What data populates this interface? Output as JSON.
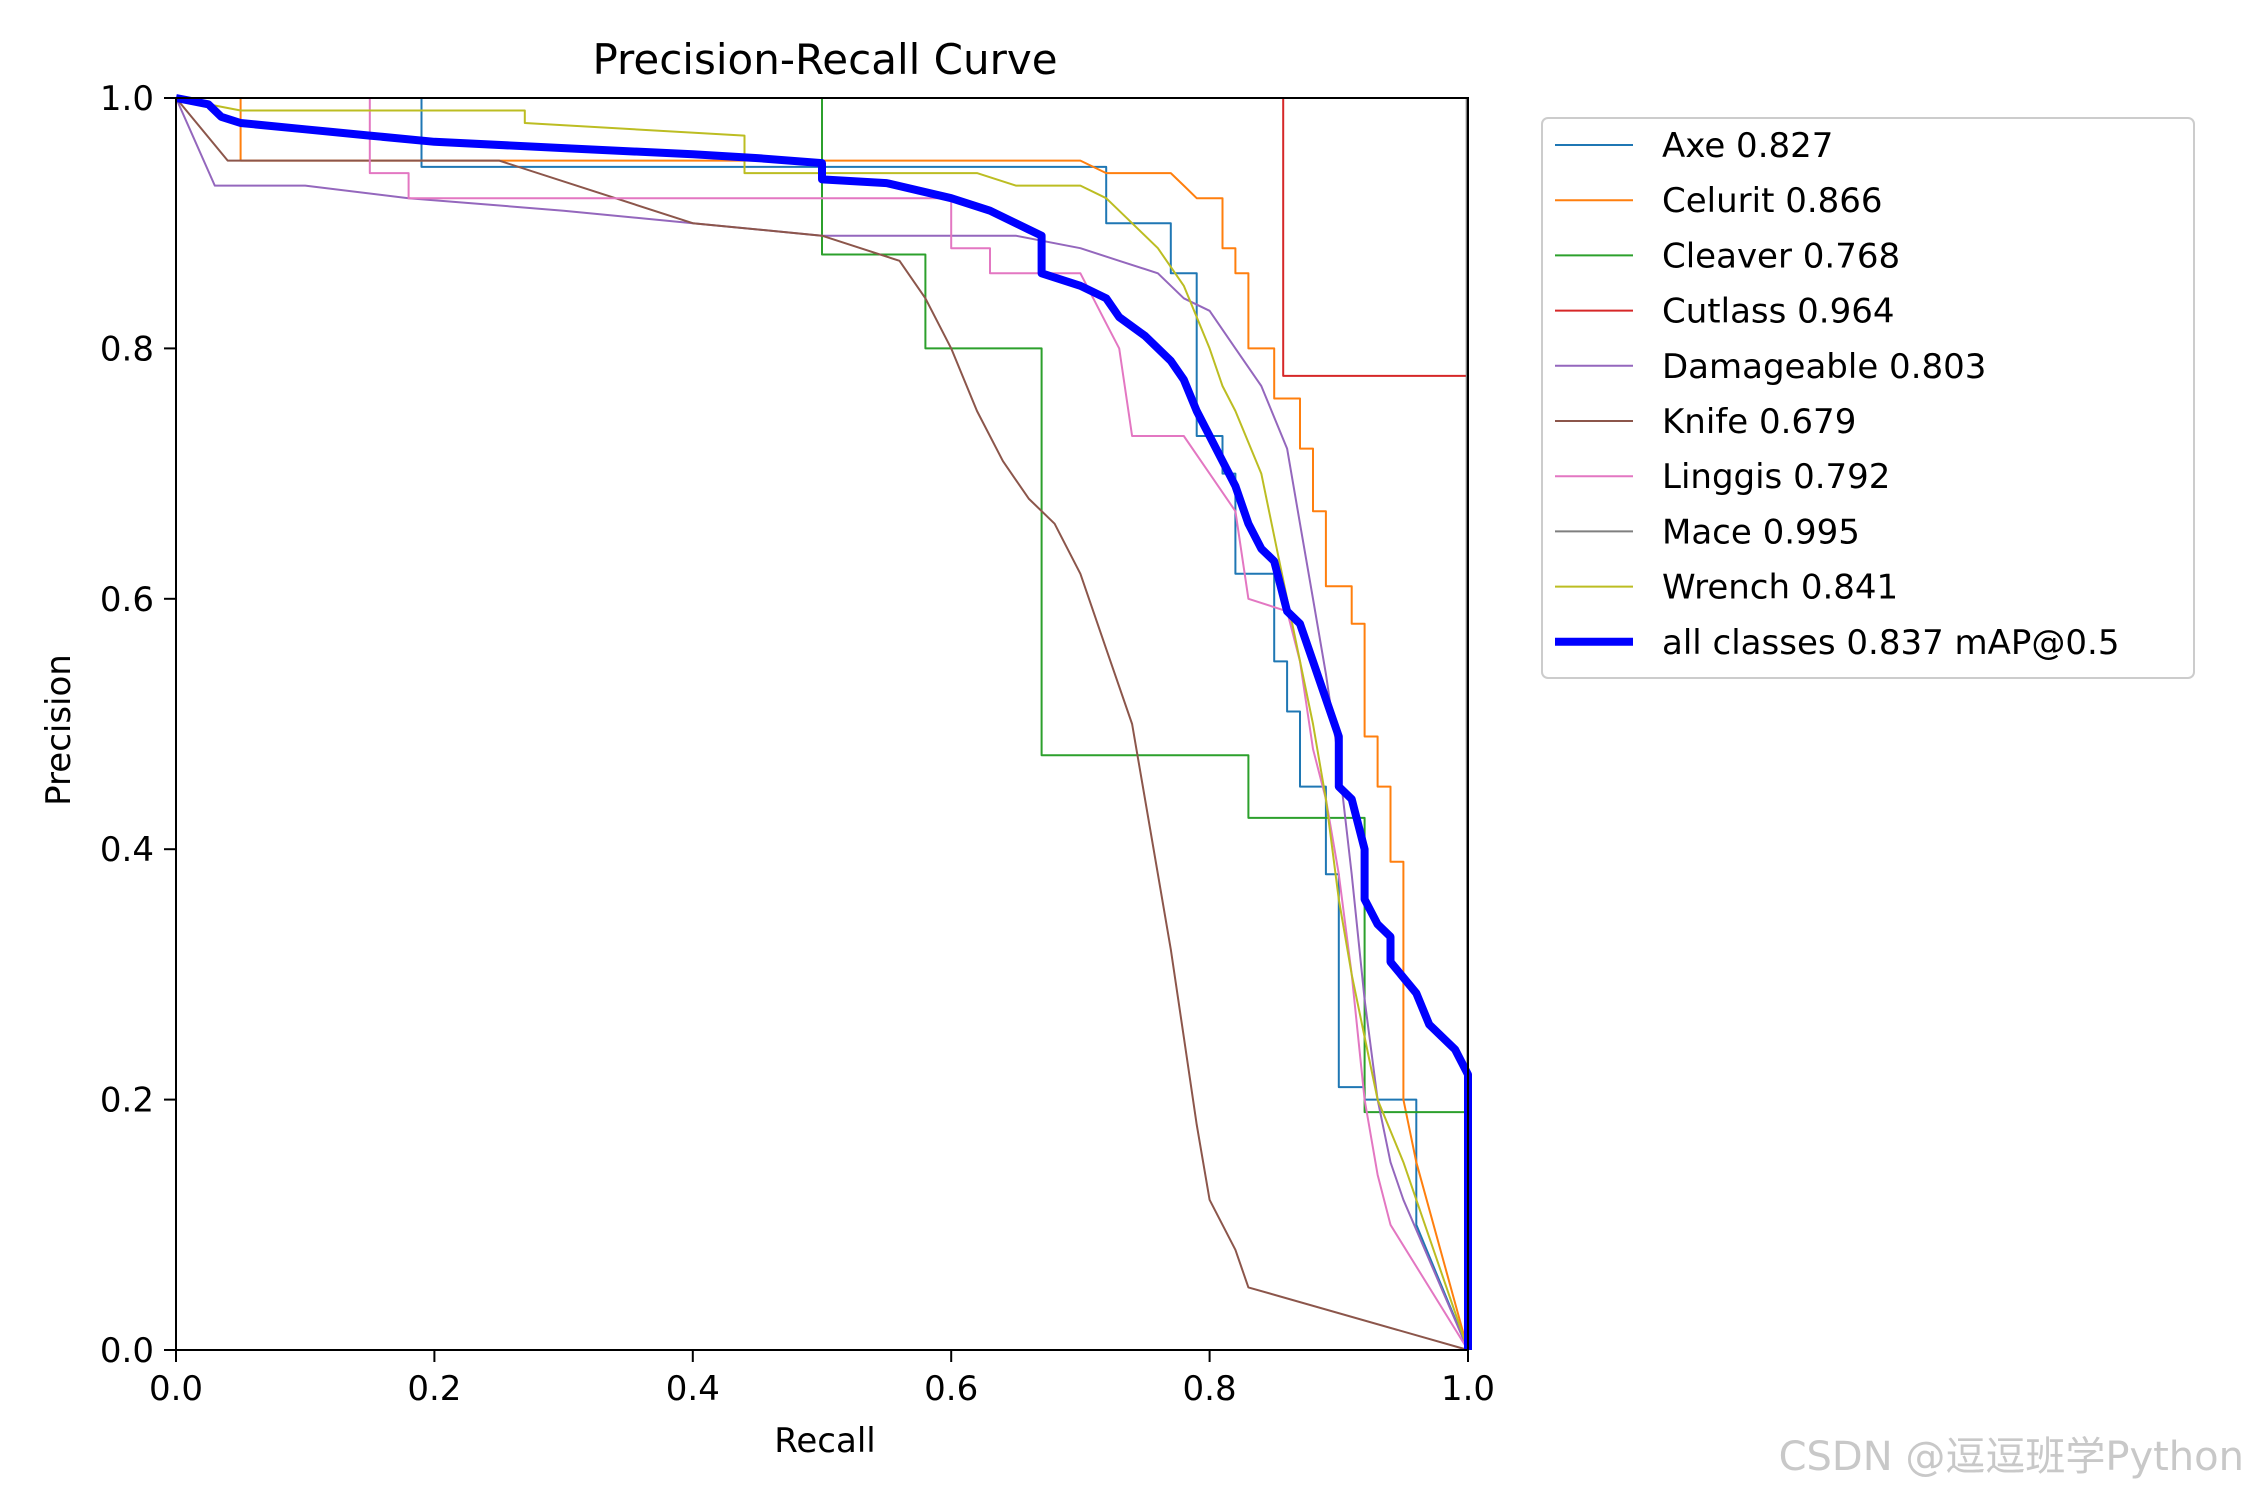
{
  "chart_data": {
    "type": "line",
    "title": "Precision-Recall Curve",
    "xlabel": "Recall",
    "ylabel": "Precision",
    "xlim": [
      0,
      1
    ],
    "ylim": [
      0,
      1
    ],
    "xticks": [
      "0.0",
      "0.2",
      "0.4",
      "0.6",
      "0.8",
      "1.0"
    ],
    "yticks": [
      "0.0",
      "0.2",
      "0.4",
      "0.6",
      "0.8",
      "1.0"
    ],
    "grid": false,
    "legend_position": "outside-right",
    "series": [
      {
        "name": "Axe 0.827",
        "color": "#1f77b4",
        "highlight": false,
        "points": [
          [
            0,
            1
          ],
          [
            0.19,
            1
          ],
          [
            0.19,
            0.945
          ],
          [
            0.5,
            0.945
          ],
          [
            0.72,
            0.945
          ],
          [
            0.72,
            0.9
          ],
          [
            0.77,
            0.9
          ],
          [
            0.77,
            0.86
          ],
          [
            0.79,
            0.86
          ],
          [
            0.79,
            0.73
          ],
          [
            0.81,
            0.73
          ],
          [
            0.81,
            0.7
          ],
          [
            0.82,
            0.7
          ],
          [
            0.82,
            0.62
          ],
          [
            0.85,
            0.62
          ],
          [
            0.85,
            0.55
          ],
          [
            0.86,
            0.55
          ],
          [
            0.86,
            0.51
          ],
          [
            0.87,
            0.51
          ],
          [
            0.87,
            0.45
          ],
          [
            0.89,
            0.45
          ],
          [
            0.89,
            0.38
          ],
          [
            0.9,
            0.38
          ],
          [
            0.9,
            0.21
          ],
          [
            0.92,
            0.21
          ],
          [
            0.92,
            0.2
          ],
          [
            0.96,
            0.2
          ],
          [
            0.96,
            0.1
          ],
          [
            1,
            0
          ]
        ]
      },
      {
        "name": "Celurit 0.866",
        "color": "#ff7f0e",
        "highlight": false,
        "points": [
          [
            0,
            1
          ],
          [
            0.05,
            1
          ],
          [
            0.05,
            0.95
          ],
          [
            0.7,
            0.95
          ],
          [
            0.72,
            0.94
          ],
          [
            0.77,
            0.94
          ],
          [
            0.78,
            0.93
          ],
          [
            0.79,
            0.92
          ],
          [
            0.81,
            0.92
          ],
          [
            0.81,
            0.88
          ],
          [
            0.82,
            0.88
          ],
          [
            0.82,
            0.86
          ],
          [
            0.83,
            0.86
          ],
          [
            0.83,
            0.8
          ],
          [
            0.85,
            0.8
          ],
          [
            0.85,
            0.76
          ],
          [
            0.87,
            0.76
          ],
          [
            0.87,
            0.72
          ],
          [
            0.88,
            0.72
          ],
          [
            0.88,
            0.67
          ],
          [
            0.89,
            0.67
          ],
          [
            0.89,
            0.61
          ],
          [
            0.91,
            0.61
          ],
          [
            0.91,
            0.58
          ],
          [
            0.92,
            0.58
          ],
          [
            0.92,
            0.49
          ],
          [
            0.93,
            0.49
          ],
          [
            0.93,
            0.45
          ],
          [
            0.94,
            0.45
          ],
          [
            0.94,
            0.39
          ],
          [
            0.95,
            0.39
          ],
          [
            0.95,
            0.2
          ],
          [
            0.96,
            0.15
          ],
          [
            1,
            0
          ]
        ]
      },
      {
        "name": "Cleaver 0.768",
        "color": "#2ca02c",
        "highlight": false,
        "points": [
          [
            0,
            1
          ],
          [
            0.5,
            1
          ],
          [
            0.5,
            0.875
          ],
          [
            0.58,
            0.875
          ],
          [
            0.58,
            0.8
          ],
          [
            0.67,
            0.8
          ],
          [
            0.67,
            0.475
          ],
          [
            0.83,
            0.475
          ],
          [
            0.83,
            0.425
          ],
          [
            0.92,
            0.425
          ],
          [
            0.92,
            0.19
          ],
          [
            1,
            0.19
          ],
          [
            1,
            0
          ]
        ]
      },
      {
        "name": "Cutlass 0.964",
        "color": "#d62728",
        "highlight": false,
        "points": [
          [
            0,
            1
          ],
          [
            0.857,
            1
          ],
          [
            0.857,
            0.778
          ],
          [
            1,
            0.778
          ],
          [
            1,
            0
          ]
        ]
      },
      {
        "name": "Damageable 0.803",
        "color": "#9467bd",
        "highlight": false,
        "points": [
          [
            0,
            1
          ],
          [
            0.03,
            0.93
          ],
          [
            0.1,
            0.93
          ],
          [
            0.18,
            0.92
          ],
          [
            0.3,
            0.91
          ],
          [
            0.4,
            0.9
          ],
          [
            0.5,
            0.89
          ],
          [
            0.6,
            0.89
          ],
          [
            0.65,
            0.89
          ],
          [
            0.7,
            0.88
          ],
          [
            0.73,
            0.87
          ],
          [
            0.76,
            0.86
          ],
          [
            0.78,
            0.84
          ],
          [
            0.8,
            0.83
          ],
          [
            0.82,
            0.8
          ],
          [
            0.84,
            0.77
          ],
          [
            0.86,
            0.72
          ],
          [
            0.87,
            0.66
          ],
          [
            0.88,
            0.6
          ],
          [
            0.89,
            0.54
          ],
          [
            0.9,
            0.47
          ],
          [
            0.91,
            0.38
          ],
          [
            0.92,
            0.28
          ],
          [
            0.93,
            0.2
          ],
          [
            0.94,
            0.15
          ],
          [
            0.95,
            0.12
          ],
          [
            1,
            0
          ]
        ]
      },
      {
        "name": "Knife 0.679",
        "color": "#8c564b",
        "highlight": false,
        "points": [
          [
            0,
            1
          ],
          [
            0.04,
            0.95
          ],
          [
            0.25,
            0.95
          ],
          [
            0.4,
            0.9
          ],
          [
            0.5,
            0.89
          ],
          [
            0.56,
            0.87
          ],
          [
            0.58,
            0.84
          ],
          [
            0.6,
            0.8
          ],
          [
            0.62,
            0.75
          ],
          [
            0.64,
            0.71
          ],
          [
            0.66,
            0.68
          ],
          [
            0.68,
            0.66
          ],
          [
            0.7,
            0.62
          ],
          [
            0.72,
            0.56
          ],
          [
            0.74,
            0.5
          ],
          [
            0.75,
            0.44
          ],
          [
            0.76,
            0.38
          ],
          [
            0.77,
            0.32
          ],
          [
            0.78,
            0.25
          ],
          [
            0.79,
            0.18
          ],
          [
            0.8,
            0.12
          ],
          [
            0.82,
            0.08
          ],
          [
            0.83,
            0.05
          ],
          [
            1,
            0
          ]
        ]
      },
      {
        "name": "Linggis 0.792",
        "color": "#e377c2",
        "highlight": false,
        "points": [
          [
            0,
            1
          ],
          [
            0.15,
            1
          ],
          [
            0.15,
            0.94
          ],
          [
            0.18,
            0.94
          ],
          [
            0.18,
            0.92
          ],
          [
            0.6,
            0.92
          ],
          [
            0.6,
            0.88
          ],
          [
            0.63,
            0.88
          ],
          [
            0.63,
            0.86
          ],
          [
            0.7,
            0.86
          ],
          [
            0.72,
            0.82
          ],
          [
            0.73,
            0.8
          ],
          [
            0.74,
            0.73
          ],
          [
            0.78,
            0.73
          ],
          [
            0.8,
            0.7
          ],
          [
            0.82,
            0.67
          ],
          [
            0.83,
            0.6
          ],
          [
            0.86,
            0.59
          ],
          [
            0.87,
            0.55
          ],
          [
            0.88,
            0.48
          ],
          [
            0.89,
            0.44
          ],
          [
            0.9,
            0.38
          ],
          [
            0.91,
            0.3
          ],
          [
            0.92,
            0.2
          ],
          [
            0.93,
            0.14
          ],
          [
            0.94,
            0.1
          ],
          [
            1,
            0
          ]
        ]
      },
      {
        "name": "Mace 0.995",
        "color": "#7f7f7f",
        "highlight": false,
        "points": [
          [
            0,
            1
          ],
          [
            0.999,
            1
          ],
          [
            0.999,
            0.5
          ],
          [
            1,
            0
          ]
        ]
      },
      {
        "name": "Wrench 0.841",
        "color": "#bcbd22",
        "highlight": false,
        "points": [
          [
            0,
            1
          ],
          [
            0.05,
            0.99
          ],
          [
            0.27,
            0.99
          ],
          [
            0.27,
            0.98
          ],
          [
            0.44,
            0.97
          ],
          [
            0.44,
            0.94
          ],
          [
            0.62,
            0.94
          ],
          [
            0.65,
            0.93
          ],
          [
            0.7,
            0.93
          ],
          [
            0.72,
            0.92
          ],
          [
            0.74,
            0.9
          ],
          [
            0.76,
            0.88
          ],
          [
            0.78,
            0.85
          ],
          [
            0.8,
            0.8
          ],
          [
            0.81,
            0.77
          ],
          [
            0.82,
            0.75
          ],
          [
            0.84,
            0.7
          ],
          [
            0.86,
            0.6
          ],
          [
            0.88,
            0.5
          ],
          [
            0.89,
            0.44
          ],
          [
            0.9,
            0.36
          ],
          [
            0.91,
            0.3
          ],
          [
            0.92,
            0.25
          ],
          [
            0.93,
            0.2
          ],
          [
            0.95,
            0.15
          ],
          [
            1,
            0
          ]
        ]
      },
      {
        "name": "all classes 0.837 mAP@0.5",
        "color": "#0000ff",
        "highlight": true,
        "points": [
          [
            0,
            1
          ],
          [
            0.025,
            0.995
          ],
          [
            0.035,
            0.985
          ],
          [
            0.05,
            0.98
          ],
          [
            0.1,
            0.975
          ],
          [
            0.15,
            0.97
          ],
          [
            0.2,
            0.965
          ],
          [
            0.3,
            0.96
          ],
          [
            0.4,
            0.955
          ],
          [
            0.45,
            0.952
          ],
          [
            0.5,
            0.948
          ],
          [
            0.5,
            0.935
          ],
          [
            0.55,
            0.932
          ],
          [
            0.6,
            0.92
          ],
          [
            0.63,
            0.91
          ],
          [
            0.66,
            0.895
          ],
          [
            0.67,
            0.89
          ],
          [
            0.67,
            0.86
          ],
          [
            0.7,
            0.85
          ],
          [
            0.72,
            0.84
          ],
          [
            0.73,
            0.825
          ],
          [
            0.75,
            0.81
          ],
          [
            0.77,
            0.79
          ],
          [
            0.78,
            0.775
          ],
          [
            0.79,
            0.75
          ],
          [
            0.8,
            0.73
          ],
          [
            0.81,
            0.71
          ],
          [
            0.82,
            0.69
          ],
          [
            0.83,
            0.66
          ],
          [
            0.84,
            0.64
          ],
          [
            0.85,
            0.63
          ],
          [
            0.86,
            0.59
          ],
          [
            0.87,
            0.58
          ],
          [
            0.88,
            0.55
          ],
          [
            0.89,
            0.52
          ],
          [
            0.9,
            0.49
          ],
          [
            0.9,
            0.45
          ],
          [
            0.91,
            0.44
          ],
          [
            0.92,
            0.4
          ],
          [
            0.92,
            0.36
          ],
          [
            0.93,
            0.34
          ],
          [
            0.94,
            0.33
          ],
          [
            0.94,
            0.31
          ],
          [
            0.96,
            0.285
          ],
          [
            0.97,
            0.26
          ],
          [
            0.99,
            0.24
          ],
          [
            1,
            0.22
          ],
          [
            1,
            0
          ]
        ]
      }
    ]
  },
  "watermark": "CSDN @逗逗班学Python"
}
